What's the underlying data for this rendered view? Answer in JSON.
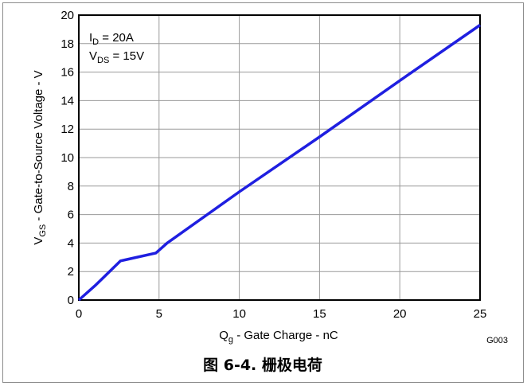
{
  "chart_data": {
    "type": "line",
    "title": "",
    "xlabel": {
      "main": "Q",
      "sub": "g",
      "rest": " - Gate Charge - nC"
    },
    "ylabel": {
      "main": "V",
      "sub": "GS",
      "rest": " - Gate-to-Source Voltage - V"
    },
    "xlim": [
      0,
      25
    ],
    "ylim": [
      0,
      20
    ],
    "x_ticks": [
      0,
      5,
      10,
      15,
      20,
      25
    ],
    "y_ticks": [
      0,
      2,
      4,
      6,
      8,
      10,
      12,
      14,
      16,
      18,
      20
    ],
    "grid": true,
    "series": [
      {
        "color": "#1f1fe0",
        "points": [
          [
            0,
            0
          ],
          [
            1,
            1.0
          ],
          [
            2.6,
            2.75
          ],
          [
            3.0,
            2.85
          ],
          [
            4.8,
            3.3
          ],
          [
            5.5,
            4.0
          ],
          [
            10,
            7.6
          ],
          [
            15,
            11.45
          ],
          [
            20,
            15.4
          ],
          [
            25,
            19.3
          ]
        ]
      }
    ],
    "annotations": [
      {
        "main": "I",
        "sub": "D",
        "rest": " = 20A"
      },
      {
        "main": "V",
        "sub": "DS",
        "rest": " = 15V"
      }
    ],
    "figure_code": "G003",
    "caption": "图 6-4. 栅极电荷"
  }
}
